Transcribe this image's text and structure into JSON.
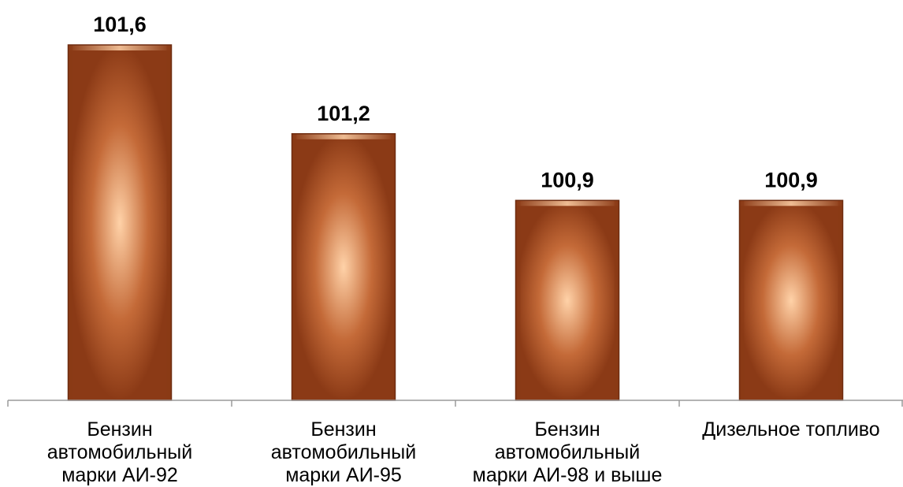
{
  "chart_data": {
    "type": "bar",
    "categories": [
      [
        "Бензин",
        "автомобильный",
        "марки АИ-92"
      ],
      [
        "Бензин",
        "автомобильный",
        "марки АИ-95"
      ],
      [
        "Бензин",
        "автомобильный",
        "марки АИ-98 и выше"
      ],
      [
        "Дизельное топливо"
      ]
    ],
    "values": [
      101.6,
      101.2,
      100.9,
      100.9
    ],
    "value_labels": [
      "101,6",
      "101,2",
      "100,9",
      "100,9"
    ],
    "title": "",
    "xlabel": "",
    "ylabel": "",
    "ylim": [
      100.0,
      101.6
    ],
    "grid": false,
    "legend": "none",
    "colors": {
      "bar_dark": "#8b3a16",
      "bar_mid": "#c46a38",
      "bar_light": "#ffd2a8",
      "axis": "#9a9a9a"
    }
  }
}
